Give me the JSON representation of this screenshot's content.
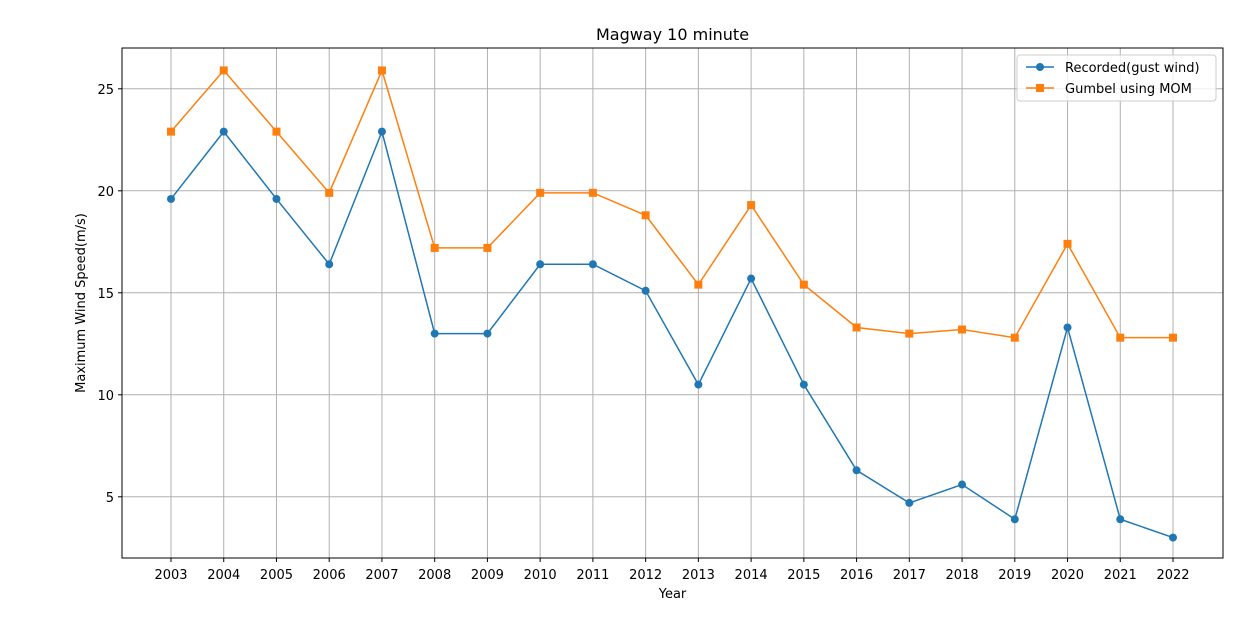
{
  "chart_data": {
    "type": "line",
    "title": "Magway 10 minute",
    "xlabel": "Year",
    "ylabel": "Maximum Wind Speed(m/s)",
    "x": [
      "2003",
      "2004",
      "2005",
      "2006",
      "2007",
      "2008",
      "2009",
      "2010",
      "2011",
      "2012",
      "2013",
      "2014",
      "2015",
      "2016",
      "2017",
      "2018",
      "2019",
      "2020",
      "2021",
      "2022"
    ],
    "ylim": [
      2,
      27
    ],
    "yticks": [
      5,
      10,
      15,
      20,
      25
    ],
    "grid": true,
    "legend_position": "top-right",
    "series": [
      {
        "name": "Recorded(gust wind)",
        "color": "#1f77b4",
        "marker": "circle",
        "values": [
          19.6,
          22.9,
          19.6,
          16.4,
          22.9,
          13.0,
          13.0,
          16.4,
          16.4,
          15.1,
          10.5,
          15.7,
          10.5,
          6.3,
          4.7,
          5.6,
          3.9,
          13.3,
          3.9,
          3.0
        ]
      },
      {
        "name": "Gumbel using MOM",
        "color": "#ff7f0e",
        "marker": "square",
        "values": [
          22.9,
          25.9,
          22.9,
          19.9,
          25.9,
          17.2,
          17.2,
          19.9,
          19.9,
          18.8,
          15.4,
          19.3,
          15.4,
          13.3,
          13.0,
          13.2,
          12.8,
          17.4,
          12.8,
          12.8
        ]
      }
    ]
  }
}
